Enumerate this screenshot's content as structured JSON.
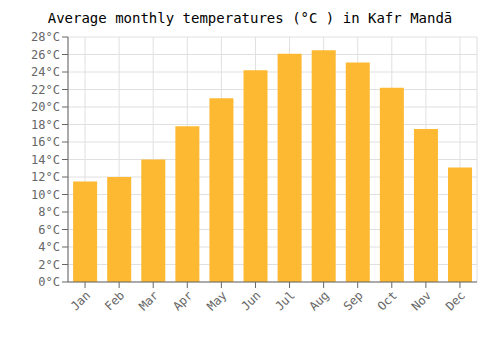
{
  "chart_data": {
    "type": "bar",
    "title": "Average monthly temperatures (°C ) in Kafr Mandā",
    "categories": [
      "Jan",
      "Feb",
      "Mar",
      "Apr",
      "May",
      "Jun",
      "Jul",
      "Aug",
      "Sep",
      "Oct",
      "Nov",
      "Dec"
    ],
    "values": [
      11.5,
      12.0,
      14.0,
      17.8,
      21.0,
      24.2,
      26.1,
      26.5,
      25.1,
      22.2,
      17.5,
      13.1
    ],
    "color": "#FDB931",
    "ylim": [
      0,
      28
    ],
    "yticks": [
      {
        "value": 0,
        "label": "0°C"
      },
      {
        "value": 2,
        "label": "2°C"
      },
      {
        "value": 4,
        "label": "4°C"
      },
      {
        "value": 6,
        "label": "6°C"
      },
      {
        "value": 8,
        "label": "8°C"
      },
      {
        "value": 10,
        "label": "10°C"
      },
      {
        "value": 12,
        "label": "12°C"
      },
      {
        "value": 14,
        "label": "14°C"
      },
      {
        "value": 16,
        "label": "16°C"
      },
      {
        "value": 18,
        "label": "18°C"
      },
      {
        "value": 20,
        "label": "20°C"
      },
      {
        "value": 22,
        "label": "22°C"
      },
      {
        "value": 24,
        "label": "24°C"
      },
      {
        "value": 26,
        "label": "26°C"
      },
      {
        "value": 28,
        "label": "28°C"
      }
    ],
    "grid": true
  }
}
